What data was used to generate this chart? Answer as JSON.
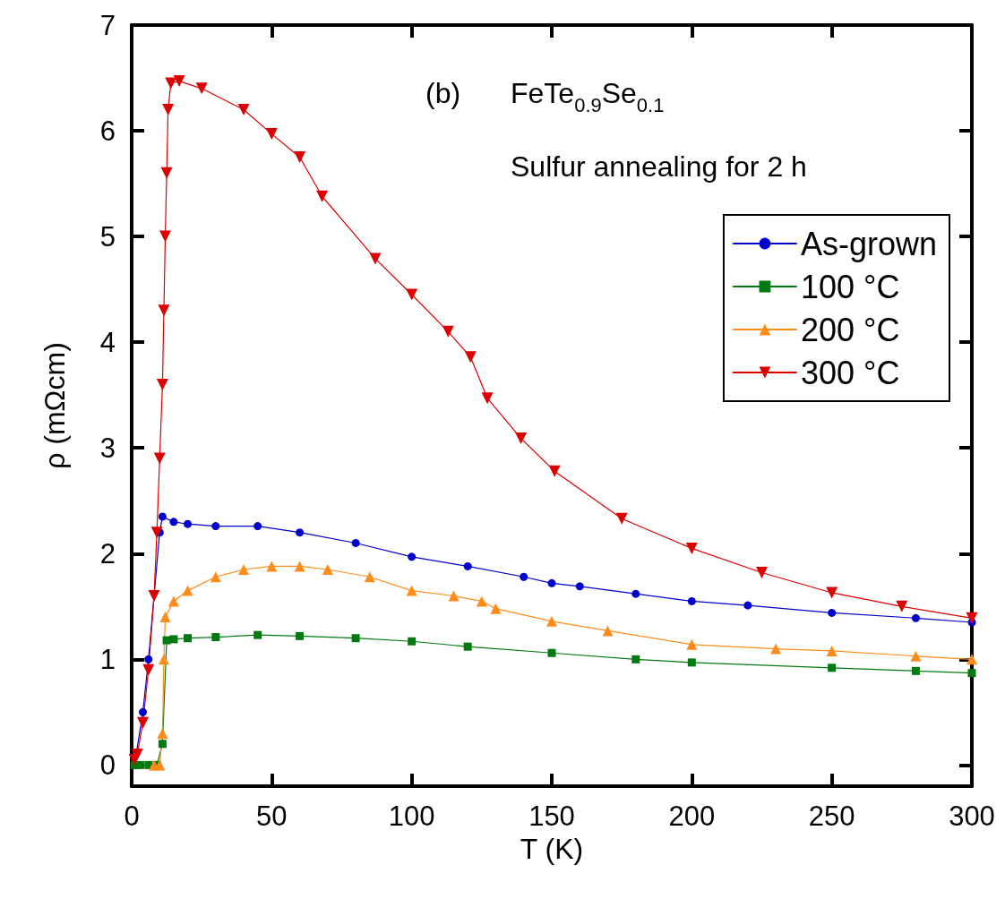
{
  "chart_data": {
    "type": "line",
    "xlabel": "T (K)",
    "ylabel": "ρ (mΩcm)",
    "annotations": [
      "(b)",
      "FeTe$_{0.9}$Se$_{0.1}$",
      "Sulfur annealing for 2 h"
    ],
    "xlim": [
      0,
      300
    ],
    "xticks": [
      0,
      50,
      100,
      150,
      200,
      250,
      300
    ],
    "ylim": [
      -0.2,
      7
    ],
    "yticks": [
      0,
      1,
      2,
      3,
      4,
      5,
      6,
      7
    ],
    "grid": false,
    "legend": "top right",
    "line_style": "solid",
    "series": [
      {
        "name": "As-grown",
        "color": "#0000cc",
        "marker": "circle",
        "x": [
          1,
          4,
          6,
          10,
          11,
          15,
          20,
          30,
          45,
          60,
          80,
          100,
          120,
          140,
          150,
          160,
          180,
          200,
          220,
          250,
          280,
          300
        ],
        "values": [
          0.0,
          0.5,
          1.0,
          2.2,
          2.35,
          2.3,
          2.28,
          2.26,
          2.26,
          2.2,
          2.1,
          1.97,
          1.88,
          1.78,
          1.72,
          1.69,
          1.62,
          1.55,
          1.51,
          1.44,
          1.39,
          1.35
        ]
      },
      {
        "name": "100 °C",
        "color": "#007a10",
        "marker": "square",
        "x": [
          1,
          3,
          6,
          9,
          11,
          12.5,
          15,
          20,
          30,
          45,
          60,
          80,
          100,
          120,
          150,
          180,
          200,
          250,
          280,
          300
        ],
        "values": [
          0.0,
          0.0,
          0.0,
          0.0,
          0.2,
          1.18,
          1.19,
          1.2,
          1.21,
          1.23,
          1.22,
          1.2,
          1.17,
          1.12,
          1.06,
          1.0,
          0.97,
          0.92,
          0.89,
          0.87
        ]
      },
      {
        "name": "200 °C",
        "color": "#ff8c1a",
        "marker": "triangle",
        "x": [
          8,
          10,
          11,
          11.5,
          12,
          15,
          20,
          30,
          40,
          50,
          60,
          70,
          85,
          100,
          115,
          125,
          130,
          150,
          170,
          200,
          230,
          250,
          280,
          300
        ],
        "values": [
          0.0,
          0.0,
          0.3,
          1.0,
          1.4,
          1.55,
          1.65,
          1.78,
          1.85,
          1.88,
          1.88,
          1.85,
          1.78,
          1.65,
          1.6,
          1.55,
          1.48,
          1.36,
          1.27,
          1.14,
          1.1,
          1.08,
          1.03,
          1.0
        ]
      },
      {
        "name": "300 °C",
        "color": "#dd0000",
        "marker": "triangle-down",
        "x": [
          1,
          2,
          4,
          6,
          8,
          9,
          10,
          11,
          11.5,
          12,
          12.5,
          13,
          14,
          17,
          25,
          40,
          50,
          60,
          68,
          87,
          100,
          113,
          121,
          127,
          139,
          151,
          175,
          200,
          225,
          250,
          275,
          300
        ],
        "values": [
          0.05,
          0.1,
          0.4,
          0.9,
          1.6,
          2.2,
          2.9,
          3.6,
          4.3,
          5.0,
          5.6,
          6.2,
          6.45,
          6.47,
          6.4,
          6.2,
          5.97,
          5.75,
          5.38,
          4.79,
          4.45,
          4.1,
          3.86,
          3.47,
          3.09,
          2.78,
          2.33,
          2.05,
          1.82,
          1.63,
          1.5,
          1.39
        ]
      }
    ]
  }
}
